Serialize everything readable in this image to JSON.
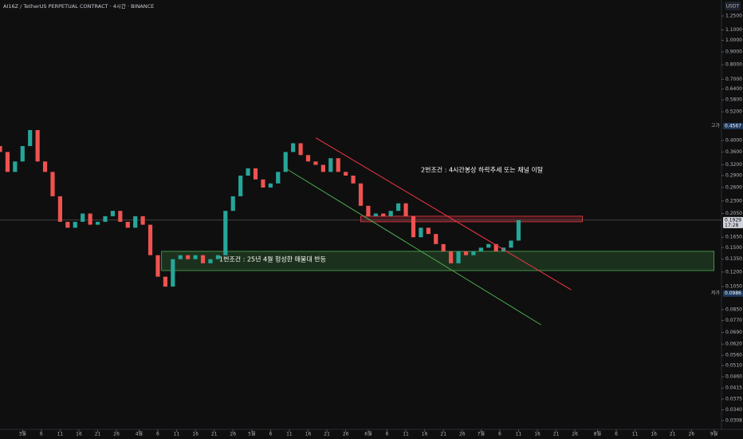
{
  "chart_data": {
    "type": "candlestick",
    "title": "AI16Z / TetherUS PERPETUAL CONTRACT · 4시간 · BINANCE",
    "currency": "USDT",
    "log_scale": true,
    "ylim": [
      0.0308,
      1.25
    ],
    "yticks": [
      {
        "value": 1.25,
        "label": "1.2500"
      },
      {
        "value": 1.1,
        "label": "1.1000"
      },
      {
        "value": 1.0,
        "label": "1.0000"
      },
      {
        "value": 0.9,
        "label": "0.9000"
      },
      {
        "value": 0.8,
        "label": "0.8000"
      },
      {
        "value": 0.7,
        "label": "0.7000"
      },
      {
        "value": 0.64,
        "label": "0.6400"
      },
      {
        "value": 0.58,
        "label": "0.5800"
      },
      {
        "value": 0.52,
        "label": "0.5200"
      },
      {
        "value": 0.4,
        "label": "0.4000"
      },
      {
        "value": 0.36,
        "label": "0.3600"
      },
      {
        "value": 0.32,
        "label": "0.3200"
      },
      {
        "value": 0.29,
        "label": "0.2900"
      },
      {
        "value": 0.26,
        "label": "0.2600"
      },
      {
        "value": 0.23,
        "label": "0.2300"
      },
      {
        "value": 0.205,
        "label": "0.2050"
      },
      {
        "value": 0.165,
        "label": "0.1650"
      },
      {
        "value": 0.15,
        "label": "0.1500"
      },
      {
        "value": 0.135,
        "label": "0.1350"
      },
      {
        "value": 0.12,
        "label": "0.1200"
      },
      {
        "value": 0.105,
        "label": "0.1050"
      },
      {
        "value": 0.085,
        "label": "0.0850"
      },
      {
        "value": 0.077,
        "label": "0.0770"
      },
      {
        "value": 0.069,
        "label": "0.0690"
      },
      {
        "value": 0.062,
        "label": "0.0620"
      },
      {
        "value": 0.056,
        "label": "0.0560"
      },
      {
        "value": 0.051,
        "label": "0.0510"
      },
      {
        "value": 0.046,
        "label": "0.0460"
      },
      {
        "value": 0.0415,
        "label": "0.0415"
      },
      {
        "value": 0.0375,
        "label": "0.0375"
      },
      {
        "value": 0.034,
        "label": "0.0340"
      },
      {
        "value": 0.0308,
        "label": "0.0308"
      }
    ],
    "xlim": [
      -6,
      186
    ],
    "xticks": [
      {
        "value": 0,
        "label": "3월"
      },
      {
        "value": 5,
        "label": "6"
      },
      {
        "value": 10,
        "label": "11"
      },
      {
        "value": 15,
        "label": "16"
      },
      {
        "value": 20,
        "label": "21"
      },
      {
        "value": 25,
        "label": "26"
      },
      {
        "value": 31,
        "label": "4월"
      },
      {
        "value": 36,
        "label": "6"
      },
      {
        "value": 41,
        "label": "11"
      },
      {
        "value": 46,
        "label": "16"
      },
      {
        "value": 51,
        "label": "21"
      },
      {
        "value": 56,
        "label": "26"
      },
      {
        "value": 61,
        "label": "5월"
      },
      {
        "value": 66,
        "label": "6"
      },
      {
        "value": 71,
        "label": "11"
      },
      {
        "value": 76,
        "label": "16"
      },
      {
        "value": 81,
        "label": "21"
      },
      {
        "value": 86,
        "label": "26"
      },
      {
        "value": 92,
        "label": "6월"
      },
      {
        "value": 97,
        "label": "6"
      },
      {
        "value": 102,
        "label": "11"
      },
      {
        "value": 107,
        "label": "16"
      },
      {
        "value": 112,
        "label": "21"
      },
      {
        "value": 117,
        "label": "26"
      },
      {
        "value": 122,
        "label": "7월"
      },
      {
        "value": 127,
        "label": "6"
      },
      {
        "value": 132,
        "label": "11"
      },
      {
        "value": 137,
        "label": "16"
      },
      {
        "value": 142,
        "label": "21"
      },
      {
        "value": 147,
        "label": "26"
      },
      {
        "value": 153,
        "label": "8월"
      },
      {
        "value": 158,
        "label": "6"
      },
      {
        "value": 163,
        "label": "11"
      },
      {
        "value": 168,
        "label": "16"
      },
      {
        "value": 173,
        "label": "21"
      },
      {
        "value": 178,
        "label": "26"
      },
      {
        "value": 184,
        "label": "9월"
      }
    ],
    "x": [
      -6,
      -4,
      -2,
      0,
      2,
      4,
      6,
      8,
      10,
      12,
      14,
      16,
      18,
      20,
      22,
      24,
      26,
      28,
      30,
      32,
      34,
      36,
      38,
      40,
      42,
      44,
      46,
      48,
      50,
      52,
      54,
      56,
      58,
      60,
      62,
      64,
      66,
      68,
      70,
      72,
      74,
      76,
      78,
      80,
      82,
      84,
      86,
      88,
      90,
      92,
      94,
      96,
      98,
      100,
      102,
      104,
      106,
      108,
      110,
      112,
      114,
      116,
      118,
      120,
      122,
      124,
      126,
      128,
      130,
      132
    ],
    "open": [
      0.38,
      0.36,
      0.3,
      0.33,
      0.38,
      0.44,
      0.33,
      0.3,
      0.24,
      0.19,
      0.18,
      0.19,
      0.205,
      0.185,
      0.19,
      0.2,
      0.21,
      0.19,
      0.18,
      0.2,
      0.185,
      0.14,
      0.115,
      0.105,
      0.135,
      0.14,
      0.135,
      0.14,
      0.13,
      0.135,
      0.14,
      0.21,
      0.24,
      0.29,
      0.31,
      0.28,
      0.26,
      0.27,
      0.3,
      0.36,
      0.39,
      0.35,
      0.33,
      0.32,
      0.3,
      0.34,
      0.3,
      0.29,
      0.27,
      0.22,
      0.2,
      0.205,
      0.2,
      0.21,
      0.225,
      0.2,
      0.165,
      0.18,
      0.17,
      0.155,
      0.145,
      0.13,
      0.145,
      0.14,
      0.145,
      0.15,
      0.155,
      0.145,
      0.15,
      0.16
    ],
    "close": [
      0.36,
      0.3,
      0.33,
      0.38,
      0.44,
      0.33,
      0.3,
      0.24,
      0.19,
      0.18,
      0.19,
      0.205,
      0.185,
      0.19,
      0.2,
      0.21,
      0.19,
      0.18,
      0.2,
      0.185,
      0.14,
      0.115,
      0.105,
      0.135,
      0.14,
      0.135,
      0.14,
      0.13,
      0.135,
      0.14,
      0.21,
      0.24,
      0.29,
      0.31,
      0.28,
      0.26,
      0.27,
      0.3,
      0.36,
      0.39,
      0.35,
      0.33,
      0.32,
      0.3,
      0.34,
      0.3,
      0.29,
      0.27,
      0.22,
      0.2,
      0.205,
      0.2,
      0.21,
      0.225,
      0.2,
      0.165,
      0.18,
      0.17,
      0.155,
      0.145,
      0.13,
      0.145,
      0.14,
      0.145,
      0.15,
      0.155,
      0.145,
      0.15,
      0.16,
      0.1929
    ],
    "up_color": "#26a69a",
    "down_color": "#ef5350",
    "last_price": 0.1929,
    "countdown": "17:28",
    "high": {
      "tag": "고가",
      "value": 0.4567
    },
    "low": {
      "tag": "저가",
      "value": 0.0986
    },
    "zones": [
      {
        "start": 37,
        "end": 184,
        "top": 0.145,
        "bottom": 0.1216,
        "color": "#4caf50"
      },
      {
        "start": 90,
        "end": 149,
        "top": 0.2,
        "bottom": 0.19,
        "color": "#f23645"
      }
    ],
    "trend_lines": [
      {
        "start": 78,
        "end": 146,
        "price_start": 0.41,
        "price_end": 0.102,
        "color": "#f23645"
      },
      {
        "start": 70,
        "end": 138,
        "price_start": 0.31,
        "price_end": 0.074,
        "color": "#4caf50"
      }
    ],
    "annotations": [
      "2번조건 : 4시간봉상 하락추세 또는 채널 이탈",
      "1번조건 : 25년 4월 형성한 매물대 반등"
    ]
  }
}
